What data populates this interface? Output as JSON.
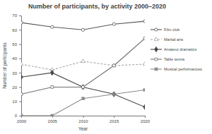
{
  "chart_data": {
    "type": "line",
    "title": "Number of participants, by activity 2000–2020",
    "x_label": "Year",
    "y_label": "Number of participants",
    "x": [
      2000,
      2005,
      2010,
      2015,
      2020
    ],
    "xlim": [
      2000,
      2020
    ],
    "xticks": [
      2000,
      2005,
      2010,
      2015,
      2020
    ],
    "ylim": [
      0,
      70
    ],
    "yticks": [
      0,
      10,
      20,
      30,
      40,
      50,
      60,
      70
    ],
    "grid": false,
    "legend": "right",
    "series": [
      {
        "name": "Film club",
        "color": "#555555",
        "marker": "circle-open",
        "line_style": "solid",
        "values": [
          65,
          62,
          60,
          64,
          66
        ]
      },
      {
        "name": "Martial arts",
        "color": "#a6a6a6",
        "marker": "triangle-open",
        "line_style": "dashed",
        "values": [
          36,
          32,
          38,
          35,
          36
        ]
      },
      {
        "name": "Amateur dramatics",
        "color": "#444444",
        "marker": "diamond",
        "line_style": "solid",
        "values": [
          27,
          30,
          20,
          15,
          6
        ]
      },
      {
        "name": "Table tennis",
        "color": "#6f6f6f",
        "marker": "square-open",
        "line_style": "solid",
        "values": [
          15,
          20,
          20,
          35,
          54
        ]
      },
      {
        "name": "Musical performances",
        "color": "#8a8a8a",
        "marker": "x",
        "line_style": "solid",
        "values": [
          0,
          0,
          12,
          15,
          18
        ]
      }
    ]
  }
}
